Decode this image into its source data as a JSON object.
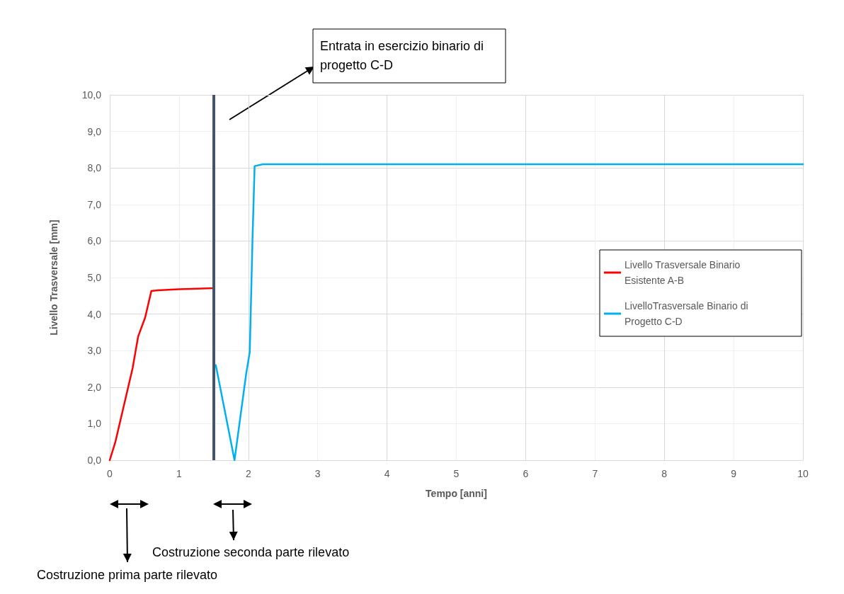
{
  "chart_data": {
    "type": "line",
    "xlabel": "Tempo [anni]",
    "ylabel": "Livello Trasversale [mm]",
    "xlim": [
      0,
      10
    ],
    "xticks": [
      0,
      1,
      2,
      3,
      4,
      5,
      6,
      7,
      8,
      9,
      10
    ],
    "ylim": [
      0,
      10
    ],
    "yticks": [
      {
        "value": 0,
        "label": "0,0"
      },
      {
        "value": 1,
        "label": "1,0"
      },
      {
        "value": 2,
        "label": "2,0"
      },
      {
        "value": 3,
        "label": "3,0"
      },
      {
        "value": 4,
        "label": "4,0"
      },
      {
        "value": 5,
        "label": "5,0"
      },
      {
        "value": 6,
        "label": "6,0"
      },
      {
        "value": 7,
        "label": "7,0"
      },
      {
        "value": 8,
        "label": "8,0"
      },
      {
        "value": 9,
        "label": "9,0"
      },
      {
        "value": 10,
        "label": "10,0"
      }
    ],
    "grid": true,
    "legend": "right",
    "marker": "none",
    "line_style": "solid",
    "series": [
      {
        "name": "Livello Trasversale Binario Esistente A-B",
        "color": "#ff0000",
        "x": [
          0,
          0.08,
          0.33,
          0.41,
          0.51,
          0.6,
          0.7,
          1.0,
          1.5
        ],
        "values": [
          0,
          0.49,
          2.52,
          3.39,
          3.9,
          4.63,
          4.65,
          4.68,
          4.71
        ]
      },
      {
        "name": "LivelloTrasversale Binario di Progetto C-D",
        "color": "#00b0f0",
        "x": [
          1.53,
          1.8,
          1.97,
          2.02,
          2.06,
          2.09,
          2.21,
          10
        ],
        "values": [
          2.6,
          0,
          2.39,
          2.96,
          6.1,
          8.05,
          8.1,
          8.1
        ]
      }
    ],
    "ref_lines": [
      {
        "axis": "x",
        "value": 1.5,
        "color": "#44546a",
        "line_style": "solid"
      }
    ],
    "annotations": [
      "Entrata in esercizio binario di progetto C-D",
      "Costruzione seconda parte rilevato",
      "Costruzione prima parte rilevato"
    ]
  }
}
